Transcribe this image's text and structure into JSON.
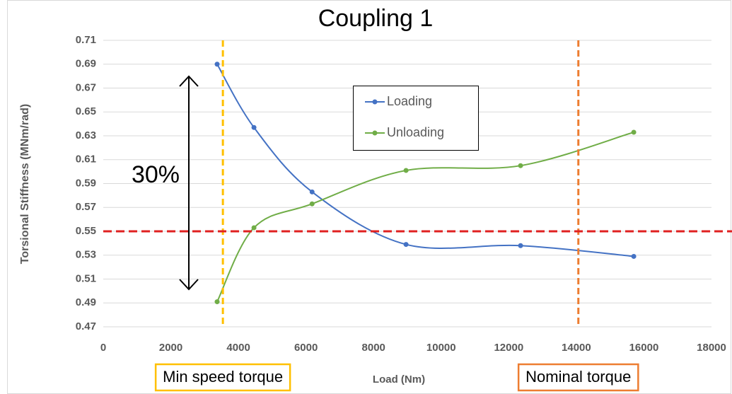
{
  "chart_data": {
    "type": "line",
    "title": "Coupling 1",
    "x_label": "Load (Nm)",
    "y_label": "Torsional Stiffness (MNm/rad)",
    "x": [
      3370,
      4460,
      6180,
      8960,
      12350,
      15700
    ],
    "series": [
      {
        "name": "Loading",
        "color": "#4472c4",
        "values": [
          0.69,
          0.637,
          0.583,
          0.539,
          0.538,
          0.529
        ]
      },
      {
        "name": "Unloading",
        "color": "#70ad47",
        "values": [
          0.491,
          0.553,
          0.573,
          0.601,
          0.605,
          0.633
        ]
      }
    ],
    "xlim": [
      0,
      18000
    ],
    "xticks": [
      0,
      2000,
      4000,
      6000,
      8000,
      10000,
      12000,
      14000,
      16000,
      18000
    ],
    "ylim": [
      0.47,
      0.71
    ],
    "yticks": [
      0.47,
      0.49,
      0.51,
      0.53,
      0.55,
      0.57,
      0.59,
      0.61,
      0.63,
      0.65,
      0.67,
      0.69,
      0.71
    ],
    "grid": true,
    "smooth": true,
    "reference_lines": [
      {
        "axis": "x",
        "value": 3540,
        "color": "#ffc000",
        "label": "Min speed torque"
      },
      {
        "axis": "x",
        "value": 14060,
        "color": "#ed7d31",
        "label": "Nominal torque"
      },
      {
        "axis": "y",
        "value": 0.55,
        "color": "#e02020"
      }
    ],
    "annotation": "30%"
  }
}
